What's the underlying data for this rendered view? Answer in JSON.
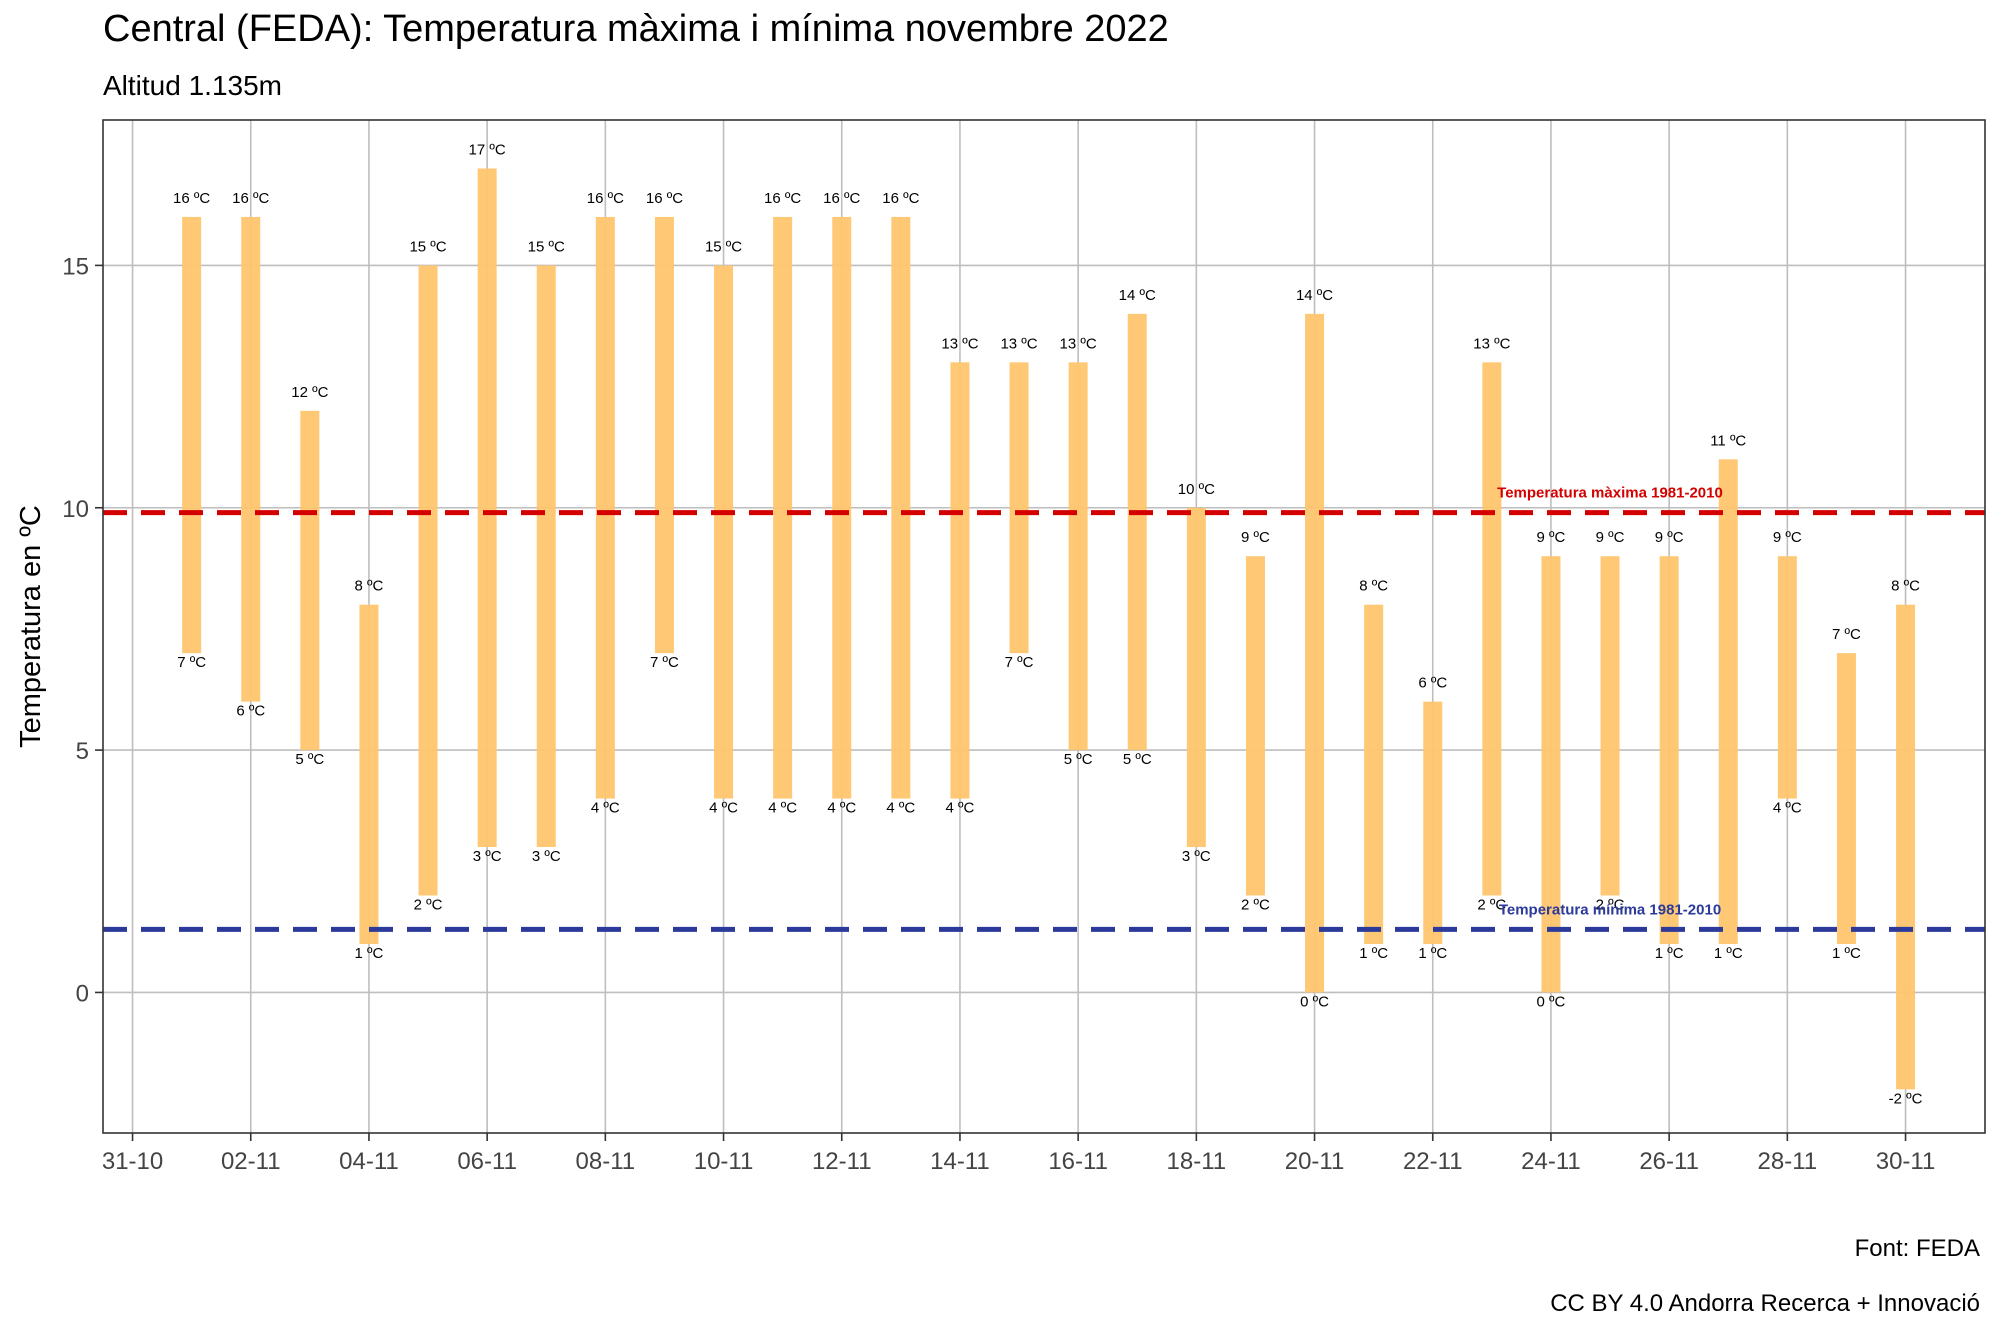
{
  "title": "Central (FEDA): Temperatura màxima i mínima novembre 2022",
  "subtitle": "Altitud 1.135m",
  "caption_source": "Font: FEDA",
  "caption_license": "CC BY 4.0 Andorra Recerca + Innovació",
  "colors": {
    "bar": "#FFC56E",
    "max_ref": "#D40000",
    "min_ref": "#2B3A9B",
    "grid": "#BEBEBE",
    "border": "#333333"
  },
  "chart_data": {
    "type": "bar",
    "ylabel": "Temperatura en ºC",
    "xlabel": "",
    "ylim": [
      -2.9,
      18.0
    ],
    "yticks": [
      0,
      5,
      10,
      15
    ],
    "xticks": [
      "31-10",
      "02-11",
      "04-11",
      "06-11",
      "08-11",
      "10-11",
      "12-11",
      "14-11",
      "16-11",
      "18-11",
      "20-11",
      "22-11",
      "24-11",
      "26-11",
      "28-11",
      "30-11"
    ],
    "unit_suffix": " ºC",
    "grid": true,
    "days": [
      "01-11",
      "02-11",
      "03-11",
      "04-11",
      "05-11",
      "06-11",
      "07-11",
      "08-11",
      "09-11",
      "10-11",
      "11-11",
      "12-11",
      "13-11",
      "14-11",
      "15-11",
      "16-11",
      "17-11",
      "18-11",
      "19-11",
      "20-11",
      "21-11",
      "22-11",
      "23-11",
      "24-11",
      "25-11",
      "26-11",
      "27-11",
      "28-11",
      "29-11",
      "30-11"
    ],
    "series": [
      {
        "name": "max",
        "values": [
          16,
          16,
          12,
          8,
          15,
          17,
          15,
          16,
          16,
          15,
          16,
          16,
          16,
          13,
          13,
          13,
          14,
          10,
          9,
          14,
          8,
          6,
          13,
          9,
          9,
          9,
          11,
          9,
          7,
          8
        ]
      },
      {
        "name": "min",
        "values": [
          7,
          6,
          5,
          1,
          2,
          3,
          3,
          4,
          7,
          4,
          4,
          4,
          4,
          4,
          7,
          5,
          5,
          3,
          2,
          0,
          1,
          1,
          2,
          0,
          2,
          1,
          1,
          4,
          1,
          -2
        ]
      }
    ],
    "reference_lines": [
      {
        "name": "Temperatura màxima 1981-2010",
        "value": 9.9,
        "color": "#D40000"
      },
      {
        "name": "Temperatura mínima 1981-2010",
        "value": 1.3,
        "color": "#2B3A9B"
      }
    ]
  }
}
